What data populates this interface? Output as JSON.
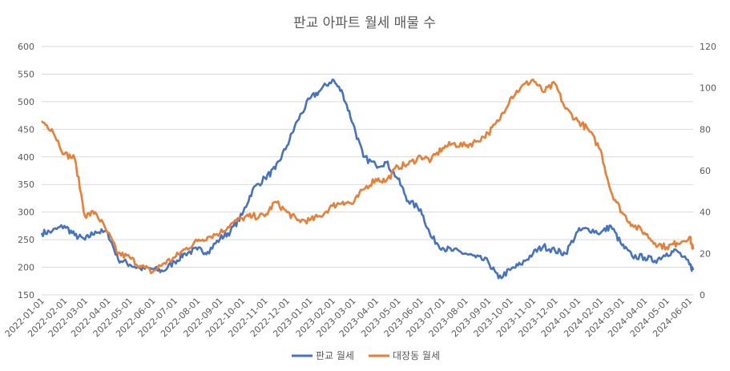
{
  "chart_data": {
    "type": "line",
    "title": "판교 아파트 월세 매물 수",
    "y_left": {
      "min": 150,
      "max": 600,
      "ticks": [
        150,
        200,
        250,
        300,
        350,
        400,
        450,
        500,
        550,
        600
      ]
    },
    "y_right": {
      "min": 0,
      "max": 120,
      "ticks": [
        0,
        20,
        40,
        60,
        80,
        100,
        120
      ]
    },
    "grid": true,
    "legend_position": "bottom",
    "x_labels": [
      "2022-01-01",
      "2022-02-01",
      "2022-03-01",
      "2022-04-01",
      "2022-05-01",
      "2022-06-01",
      "2022-07-01",
      "2022-08-01",
      "2022-09-01",
      "2022-10-01",
      "2022-11-01",
      "2022-12-01",
      "2023-01-01",
      "2023-02-01",
      "2023-03-01",
      "2023-04-01",
      "2023-05-01",
      "2023-06-01",
      "2023-07-01",
      "2023-08-01",
      "2023-09-01",
      "2023-10-01",
      "2023-11-01",
      "2023-12-01",
      "2024-01-01",
      "2024-02-01",
      "2024-03-01",
      "2024-04-01",
      "2024-05-01",
      "2024-06-01"
    ],
    "series": [
      {
        "name": "판교 월세",
        "axis": "left",
        "color": "#4472c4",
        "x": [
          "2022-01-01",
          "2022-01-15",
          "2022-02-01",
          "2022-02-15",
          "2022-03-01",
          "2022-03-15",
          "2022-04-01",
          "2022-04-15",
          "2022-05-01",
          "2022-05-15",
          "2022-06-01",
          "2022-06-15",
          "2022-07-01",
          "2022-07-15",
          "2022-08-01",
          "2022-08-15",
          "2022-09-01",
          "2022-09-15",
          "2022-10-01",
          "2022-10-15",
          "2022-11-01",
          "2022-11-15",
          "2022-12-01",
          "2022-12-15",
          "2023-01-01",
          "2023-01-15",
          "2023-02-01",
          "2023-02-15",
          "2023-03-01",
          "2023-03-15",
          "2023-04-01",
          "2023-04-15",
          "2023-05-01",
          "2023-05-15",
          "2023-06-01",
          "2023-06-15",
          "2023-07-01",
          "2023-07-15",
          "2023-08-01",
          "2023-08-15",
          "2023-09-01",
          "2023-09-15",
          "2023-10-01",
          "2023-10-15",
          "2023-11-01",
          "2023-11-15",
          "2023-12-01",
          "2023-12-15",
          "2024-01-01",
          "2024-01-15",
          "2024-02-01",
          "2024-02-15",
          "2024-03-01",
          "2024-03-15",
          "2024-04-01",
          "2024-04-15",
          "2024-05-01",
          "2024-05-15",
          "2024-06-01",
          "2024-06-06"
        ],
        "values": [
          262,
          265,
          275,
          258,
          250,
          265,
          262,
          215,
          205,
          198,
          197,
          193,
          210,
          225,
          232,
          228,
          252,
          265,
          295,
          340,
          362,
          378,
          420,
          465,
          505,
          520,
          540,
          515,
          460,
          400,
          385,
          390,
          360,
          320,
          305,
          255,
          235,
          230,
          225,
          218,
          210,
          180,
          195,
          205,
          225,
          238,
          230,
          225,
          265,
          270,
          262,
          275,
          240,
          220,
          218,
          212,
          225,
          230,
          205,
          195
        ]
      },
      {
        "name": "대장동 월세",
        "axis": "right",
        "color": "#ed7d31",
        "x": [
          "2022-01-01",
          "2022-01-15",
          "2022-02-01",
          "2022-02-15",
          "2022-03-01",
          "2022-03-15",
          "2022-04-01",
          "2022-04-15",
          "2022-05-01",
          "2022-05-15",
          "2022-06-01",
          "2022-06-15",
          "2022-07-01",
          "2022-07-15",
          "2022-08-01",
          "2022-08-15",
          "2022-09-01",
          "2022-09-15",
          "2022-10-01",
          "2022-10-15",
          "2022-11-01",
          "2022-11-15",
          "2022-12-01",
          "2022-12-15",
          "2023-01-01",
          "2023-01-15",
          "2023-02-01",
          "2023-02-15",
          "2023-03-01",
          "2023-03-15",
          "2023-04-01",
          "2023-04-15",
          "2023-05-01",
          "2023-05-15",
          "2023-06-01",
          "2023-06-15",
          "2023-07-01",
          "2023-07-15",
          "2023-08-01",
          "2023-08-15",
          "2023-09-01",
          "2023-09-15",
          "2023-10-01",
          "2023-10-15",
          "2023-11-01",
          "2023-11-15",
          "2023-12-01",
          "2023-12-15",
          "2024-01-01",
          "2024-01-15",
          "2024-02-01",
          "2024-02-15",
          "2024-03-01",
          "2024-03-15",
          "2024-04-01",
          "2024-04-15",
          "2024-05-01",
          "2024-05-15",
          "2024-06-01",
          "2024-06-06"
        ],
        "values": [
          84,
          80,
          68,
          66,
          38,
          40,
          30,
          20,
          18,
          14,
          11,
          15,
          18,
          22,
          26,
          28,
          30,
          34,
          37,
          38,
          38,
          45,
          40,
          36,
          36,
          38,
          43,
          45,
          44,
          51,
          56,
          55,
          62,
          63,
          67,
          65,
          71,
          73,
          72,
          74,
          78,
          84,
          95,
          100,
          104,
          98,
          102,
          90,
          84,
          80,
          70,
          50,
          40,
          34,
          30,
          25,
          23,
          25,
          28,
          22
        ]
      }
    ]
  }
}
